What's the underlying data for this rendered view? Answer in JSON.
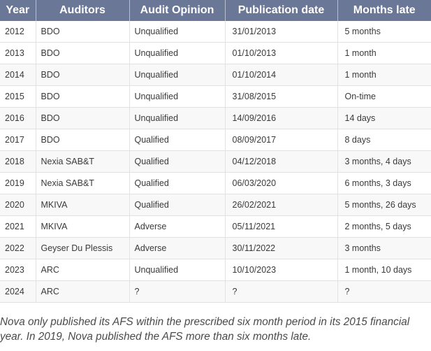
{
  "table": {
    "headers": [
      "Year",
      "Auditors",
      "Audit Opinion",
      "Publication date",
      "Months late"
    ],
    "rows": [
      [
        "2012",
        "BDO",
        "Unqualified",
        "31/01/2013",
        "5 months"
      ],
      [
        "2013",
        "BDO",
        "Unqualified",
        "01/10/2013",
        "1 month"
      ],
      [
        "2014",
        "BDO",
        "Unqualified",
        "01/10/2014",
        "1 month"
      ],
      [
        "2015",
        "BDO",
        "Unqualified",
        "31/08/2015",
        "On-time"
      ],
      [
        "2016",
        "BDO",
        "Unqualified",
        "14/09/2016",
        "14 days"
      ],
      [
        "2017",
        "BDO",
        "Qualified",
        "08/09/2017",
        "8 days"
      ],
      [
        "2018",
        "Nexia SAB&T",
        "Qualified",
        "04/12/2018",
        "3 months, 4 days"
      ],
      [
        "2019",
        "Nexia SAB&T",
        "Qualified",
        "06/03/2020",
        "6 months, 3 days"
      ],
      [
        "2020",
        "MKIVA",
        "Qualified",
        "26/02/2021",
        "5 months, 26 days"
      ],
      [
        "2021",
        "MKIVA",
        "Adverse",
        "05/11/2021",
        "2 months, 5 days"
      ],
      [
        "2022",
        "Geyser Du Plessis",
        "Adverse",
        "30/11/2022",
        "3 months"
      ],
      [
        "2023",
        "ARC",
        "Unqualified",
        "10/10/2023",
        "1 month, 10 days"
      ],
      [
        "2024",
        "ARC",
        "?",
        "?",
        "?"
      ]
    ]
  },
  "caption": "Nova only published its AFS within the prescribed six month period in its 2015 financial year. In 2019, Nova published the AFS more than six months late."
}
